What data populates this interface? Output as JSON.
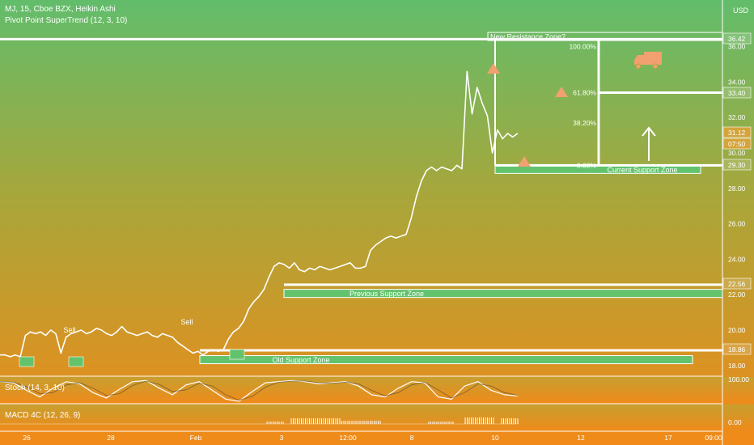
{
  "header": {
    "symbol_line": "MJ, 15, Cboe BZX, Heikin Ashi",
    "indicator_line": "Pivot Point SuperTrend (12, 3, 10)",
    "currency": "USD"
  },
  "panels": {
    "stoch_label": "Stoch (14, 3, 10)",
    "macd_label": "MACD 4C (12, 26, 9)",
    "stoch_tick": "100.00",
    "macd_tick": "0.00"
  },
  "colors": {
    "top": "#62bd6b",
    "bottom": "#f18a18",
    "zone_fill": "#63c36d",
    "marker": "#f2a070",
    "line": "#ffffff"
  },
  "chart_data": {
    "type": "line",
    "title": "",
    "x_tick_labels": [
      "26",
      "28",
      "Feb",
      "3",
      "12:00",
      "8",
      "10",
      "12",
      "17",
      "09:00"
    ],
    "y_tick_labels": [
      "18.00",
      "20.00",
      "22.00",
      "24.00",
      "26.00",
      "28.00",
      "30.00",
      "32.00",
      "34.00",
      "36.00"
    ],
    "ylim": [
      17.6,
      37.8
    ],
    "grid": false,
    "series": [
      {
        "values": [
          18.6,
          18.6,
          18.5,
          18.6,
          18.5,
          19.7,
          19.9,
          19.8,
          19.9,
          19.7,
          20.0,
          19.8,
          18.7,
          19.6,
          19.8,
          19.9,
          20.0,
          19.8,
          19.9,
          20.1,
          20.0,
          19.8,
          19.7,
          19.9,
          20.2,
          19.9,
          19.8,
          19.7,
          19.8,
          19.9,
          19.7,
          19.6,
          19.8,
          19.7,
          19.6,
          19.3,
          19.1,
          18.9,
          18.7,
          18.8,
          18.6,
          18.8,
          18.9,
          18.8,
          18.9,
          19.5,
          19.9,
          20.1,
          20.5,
          21.2,
          21.6,
          21.9,
          22.3,
          23.0,
          23.6,
          23.8,
          23.7,
          23.5,
          23.8,
          23.4,
          23.3,
          23.5,
          23.4,
          23.6,
          23.5,
          23.4,
          23.5,
          23.6,
          23.7,
          23.8,
          23.5,
          23.5,
          23.6,
          24.5,
          24.8,
          25.0,
          25.2,
          25.3,
          25.2,
          25.3,
          25.4,
          26.3,
          27.5,
          28.4,
          29.0,
          29.2,
          29.0,
          29.2,
          29.1,
          29.0,
          29.3,
          29.1,
          34.6,
          32.2,
          33.7,
          32.8,
          32.1,
          30.0,
          31.3,
          30.8,
          31.1,
          30.9,
          31.1
        ]
      }
    ],
    "price_labels": [
      "36.42",
      "33.40",
      "31.12",
      "07:50",
      "29.30",
      "22.56",
      "18.86"
    ],
    "horizontal_levels": [
      36.42,
      33.4,
      29.3,
      22.56,
      18.86
    ],
    "zones": [
      {
        "label": "New Resistance Zone?",
        "top": 36.8,
        "bottom": 36.42
      },
      {
        "label": "Current Support Zone",
        "top": 29.3,
        "bottom": 28.95
      },
      {
        "label": "Previous Support Zone",
        "top": 22.3,
        "bottom": 21.85
      },
      {
        "label": "Old Support Zone",
        "top": 18.56,
        "bottom": 18.16
      }
    ],
    "fib_levels": [
      {
        "label": "100.00%",
        "value": 36.42
      },
      {
        "label": "61.80%",
        "value": 33.4
      },
      {
        "label": "38.20%",
        "value": 31.7
      },
      {
        "label": "0.00%",
        "value": 29.3
      }
    ],
    "annotations": [
      "Sell",
      "Sell"
    ],
    "stoch": [
      0.9,
      0.85,
      0.5,
      0.2,
      0.6,
      0.9,
      0.8,
      0.4,
      0.15,
      0.55,
      0.9,
      0.95,
      0.6,
      0.3,
      0.75,
      0.9,
      0.5,
      0.1,
      0.0,
      0.45,
      0.85,
      0.9,
      0.95,
      0.9,
      0.8,
      0.85,
      0.9,
      0.7,
      0.3,
      0.2,
      0.6,
      0.9,
      0.85,
      0.2,
      0.1,
      0.7,
      0.9,
      0.5,
      0.3,
      0.25
    ]
  }
}
